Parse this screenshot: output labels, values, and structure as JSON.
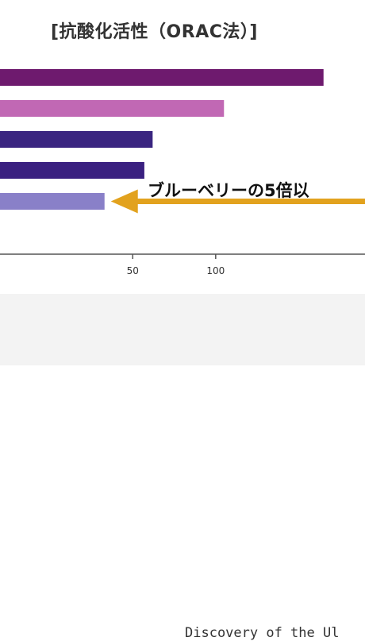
{
  "chart_data": {
    "type": "bar",
    "orientation": "horizontal",
    "title": "[抗酸化活性（ORAC法）]",
    "categories": [
      "",
      "",
      "",
      "",
      ""
    ],
    "values": [
      165,
      105,
      62,
      57,
      33
    ],
    "colors": [
      "#6e1a6e",
      "#c168b4",
      "#3a2580",
      "#3a2080",
      "#8980c8"
    ],
    "xlim": [
      -30,
      190
    ],
    "xticks": [
      50,
      100
    ],
    "xlabel": "",
    "ylabel": "",
    "grid": false,
    "annotation": {
      "text": "ブルーベリーの5倍以",
      "arrow_color": "#e2a21e",
      "points_to_bar": 4
    }
  },
  "footer": {
    "caption": "Discovery of the Ul"
  }
}
